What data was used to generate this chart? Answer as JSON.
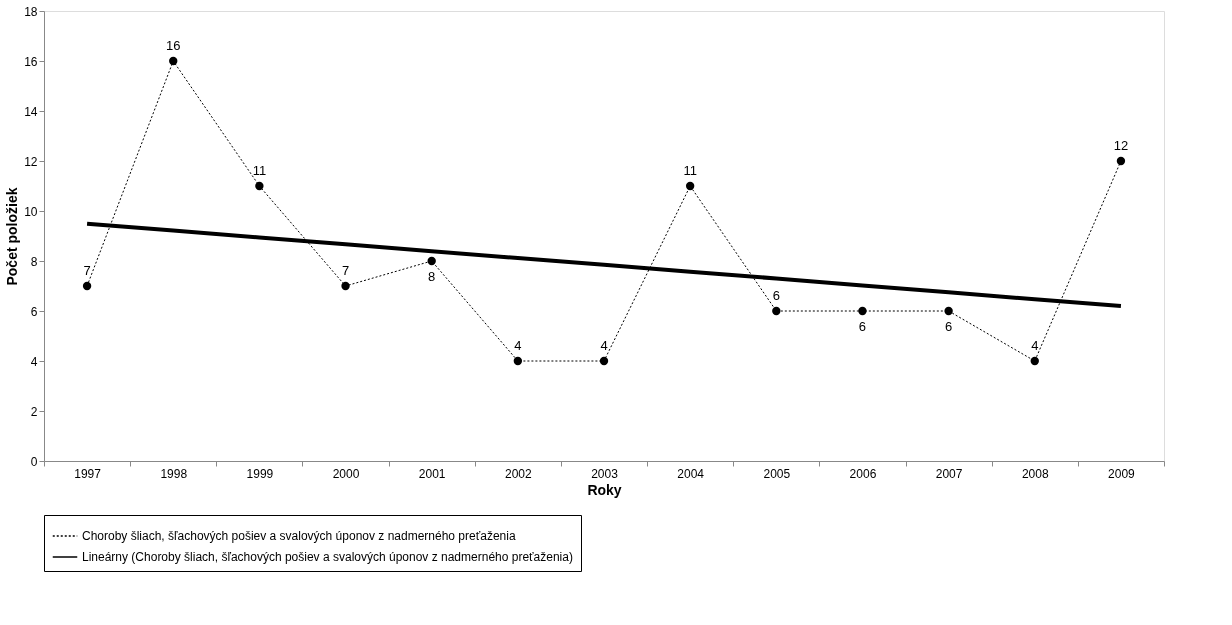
{
  "chart_data": {
    "type": "line",
    "xlabel": "Roky",
    "ylabel": "Počet položiek",
    "categories": [
      "1997",
      "1998",
      "1999",
      "2000",
      "2001",
      "2002",
      "2003",
      "2004",
      "2005",
      "2006",
      "2007",
      "2008",
      "2009"
    ],
    "series": [
      {
        "name": "Choroby šliach, šľachových pošiev a svalových úponov z nadmerného preťaženia",
        "color": "#000000",
        "marker": "circle",
        "line_style": "dotted",
        "values": [
          7,
          16,
          11,
          7,
          8,
          4,
          4,
          11,
          6,
          6,
          6,
          4,
          12
        ],
        "value_labels": [
          "7",
          "16",
          "11",
          "7",
          "8",
          "4",
          "4",
          "11",
          "6",
          "6",
          "6",
          "4",
          "12"
        ]
      },
      {
        "name": "Lineárny (Choroby šliach, šľachových pošiev a svalových úponov z nadmerného preťaženia)",
        "color": "#000000",
        "marker": "none",
        "line_style": "solid",
        "values": [
          9.49,
          9.22,
          8.94,
          8.67,
          8.39,
          8.12,
          7.85,
          7.57,
          7.3,
          7.02,
          6.75,
          6.47,
          6.2
        ]
      }
    ],
    "ylim": [
      0,
      18
    ],
    "yticks": [
      0,
      2,
      4,
      6,
      8,
      10,
      12,
      14,
      16,
      18
    ],
    "grid": false,
    "legend": "bottom"
  }
}
